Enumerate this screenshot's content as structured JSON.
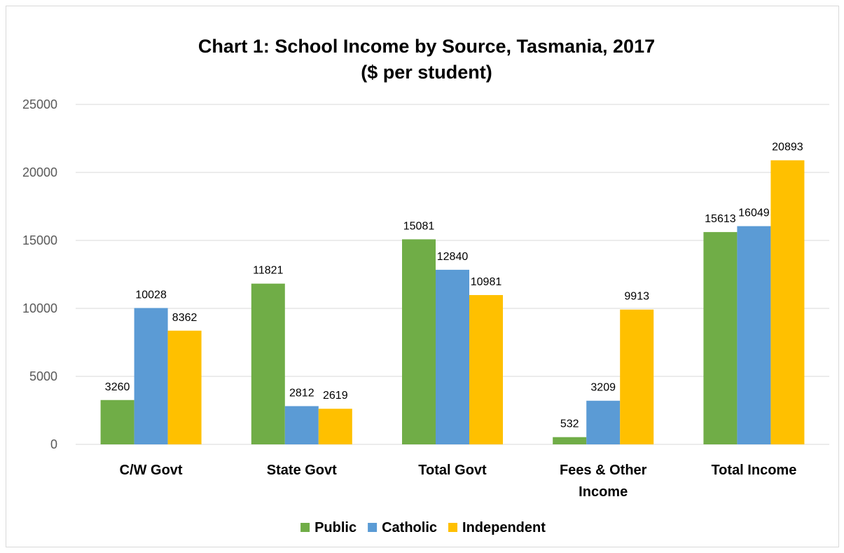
{
  "chart_data": {
    "type": "bar",
    "title": "Chart 1: School Income by Source, Tasmania, 2017",
    "subtitle": "($ per student)",
    "xlabel": "",
    "ylabel": "",
    "categories": [
      [
        "C/W Govt"
      ],
      [
        "State Govt"
      ],
      [
        "Total Govt"
      ],
      [
        "Fees & Other",
        "Income"
      ],
      [
        "Total Income"
      ]
    ],
    "series": [
      {
        "name": "Public",
        "color": "#70ad47",
        "values": [
          3260,
          11821,
          15081,
          532,
          15613
        ]
      },
      {
        "name": "Catholic",
        "color": "#5b9bd5",
        "values": [
          10028,
          2812,
          12840,
          3209,
          16049
        ]
      },
      {
        "name": "Independent",
        "color": "#ffc000",
        "values": [
          8362,
          2619,
          10981,
          9913,
          20893
        ]
      }
    ],
    "ylim": [
      0,
      25000
    ],
    "yticks": [
      0,
      5000,
      10000,
      15000,
      20000,
      25000
    ],
    "grid": true,
    "legend_position": "bottom",
    "data_labels": true
  }
}
